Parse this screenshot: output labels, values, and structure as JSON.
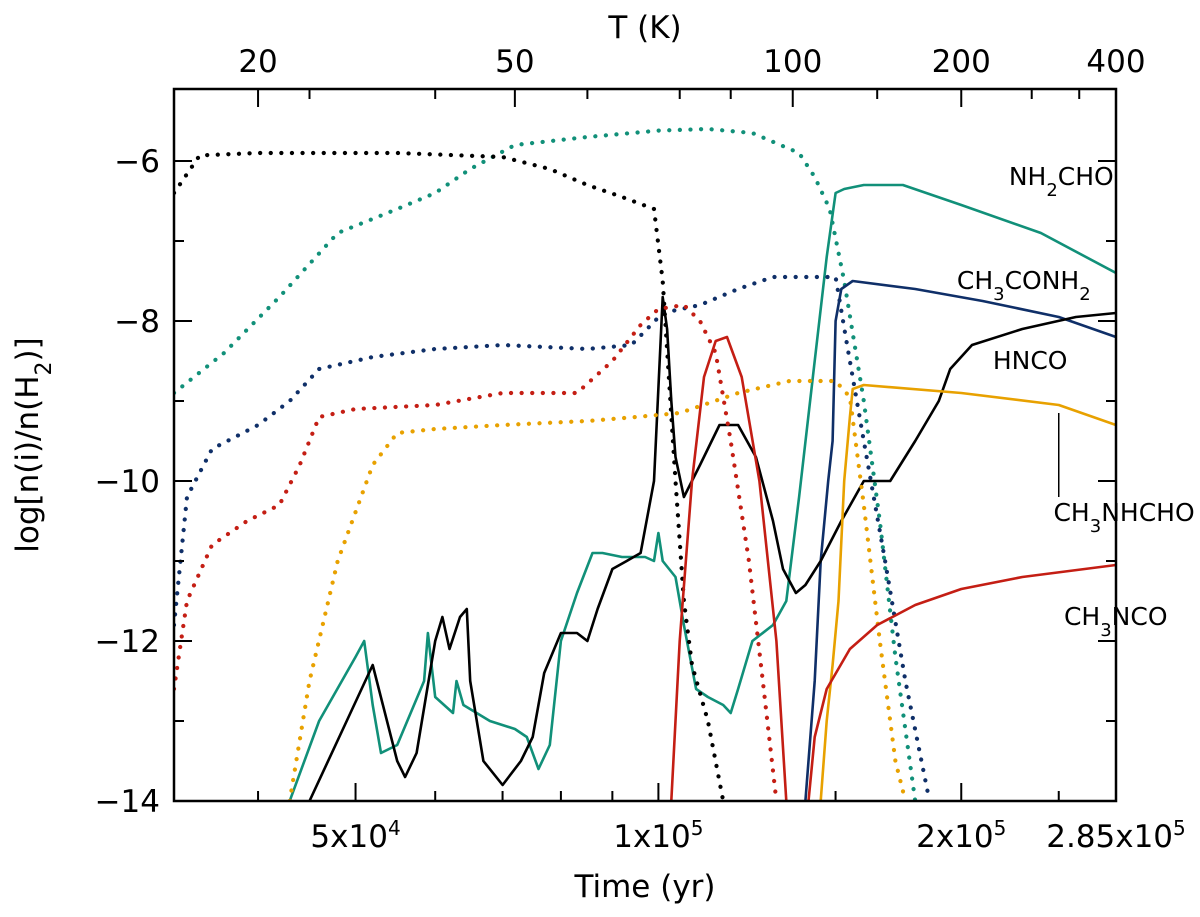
{
  "chart_data": {
    "type": "line",
    "xlabel": "Time (yr)",
    "ylabel": "log[n(i)/n(H2)]",
    "ylabel_parts": {
      "pre": "log[n(i)/n(H",
      "sub": "2",
      "post": ")]"
    },
    "top_xlabel": "T (K)",
    "xlim": [
      33000,
      285000
    ],
    "ylim": [
      -14,
      -5.1
    ],
    "x_ticks": [
      {
        "v": 50000,
        "label": "5x10",
        "sup": "4"
      },
      {
        "v": 100000,
        "label": "1x10",
        "sup": "5"
      },
      {
        "v": 200000,
        "label": "2x10",
        "sup": "5"
      },
      {
        "v": 285000,
        "label": "2.85x10",
        "sup": "5"
      }
    ],
    "y_ticks": [
      {
        "v": -6,
        "label": "−6"
      },
      {
        "v": -8,
        "label": "−8"
      },
      {
        "v": -10,
        "label": "−10"
      },
      {
        "v": -12,
        "label": "−12"
      },
      {
        "v": -14,
        "label": "−14"
      }
    ],
    "top_ticks": [
      {
        "t": 40000,
        "label": "20"
      },
      {
        "t": 72000,
        "label": "50"
      },
      {
        "t": 136000,
        "label": "100"
      },
      {
        "t": 200000,
        "label": "200"
      },
      {
        "t": 285000,
        "label": "400"
      }
    ],
    "labels": [
      {
        "parts": [
          [
            "NH",
            ""
          ],
          [
            "2",
            "sub"
          ],
          [
            "CHO",
            ""
          ]
        ],
        "x": 223000,
        "y": -6.3
      },
      {
        "parts": [
          [
            "CH",
            ""
          ],
          [
            "3",
            "sub"
          ],
          [
            "CONH",
            ""
          ],
          [
            "2",
            "sub"
          ]
        ],
        "x": 198000,
        "y": -7.6
      },
      {
        "parts": [
          [
            "HNCO",
            ""
          ]
        ],
        "x": 215000,
        "y": -8.6
      },
      {
        "parts": [
          [
            "CH",
            ""
          ],
          [
            "3",
            "sub"
          ],
          [
            "NHCHO",
            ""
          ]
        ],
        "x": 247000,
        "y": -10.5
      },
      {
        "parts": [
          [
            "CH",
            ""
          ],
          [
            "3",
            "sub"
          ],
          [
            "NCO",
            ""
          ]
        ],
        "x": 253000,
        "y": -11.8
      }
    ],
    "pointer": {
      "x": 250000,
      "y1": -9.15,
      "y2": -10.2
    },
    "series": [
      {
        "name": "NH2CHO (solid)",
        "color": "#119079",
        "dash": "solid",
        "points": [
          [
            43000,
            -14
          ],
          [
            46000,
            -13
          ],
          [
            50000,
            -12.2
          ],
          [
            51000,
            -12.0
          ],
          [
            52000,
            -12.8
          ],
          [
            53000,
            -13.4
          ],
          [
            55000,
            -13.3
          ],
          [
            58500,
            -12.5
          ],
          [
            59000,
            -11.9
          ],
          [
            60000,
            -12.7
          ],
          [
            62500,
            -12.9
          ],
          [
            63000,
            -12.5
          ],
          [
            64000,
            -12.8
          ],
          [
            68000,
            -13
          ],
          [
            72000,
            -13.1
          ],
          [
            74000,
            -13.2
          ],
          [
            76000,
            -13.6
          ],
          [
            78000,
            -13.3
          ],
          [
            80000,
            -12.0
          ],
          [
            83000,
            -11.4
          ],
          [
            86000,
            -10.9
          ],
          [
            88000,
            -10.9
          ],
          [
            92000,
            -10.95
          ],
          [
            97000,
            -10.95
          ],
          [
            99000,
            -11.0
          ],
          [
            100000,
            -10.65
          ],
          [
            101000,
            -11.0
          ],
          [
            104000,
            -11.2
          ],
          [
            106000,
            -11.8
          ],
          [
            109000,
            -12.6
          ],
          [
            112000,
            -12.7
          ],
          [
            116000,
            -12.8
          ],
          [
            118000,
            -12.9
          ],
          [
            120000,
            -12.6
          ],
          [
            124000,
            -12.0
          ],
          [
            130000,
            -11.8
          ],
          [
            134000,
            -11.5
          ],
          [
            138000,
            -10.2
          ],
          [
            143000,
            -8.5
          ],
          [
            147000,
            -7.2
          ],
          [
            150000,
            -6.4
          ],
          [
            153000,
            -6.35
          ],
          [
            160000,
            -6.3
          ],
          [
            175000,
            -6.3
          ],
          [
            200000,
            -6.55
          ],
          [
            240000,
            -6.9
          ],
          [
            285000,
            -7.4
          ]
        ]
      },
      {
        "name": "NH2CHO (dotted)",
        "color": "#119079",
        "dash": "dotted",
        "points": [
          [
            33000,
            -8.9
          ],
          [
            37000,
            -8.4
          ],
          [
            42000,
            -7.7
          ],
          [
            48000,
            -6.9
          ],
          [
            55000,
            -6.6
          ],
          [
            60000,
            -6.4
          ],
          [
            65000,
            -6.1
          ],
          [
            72000,
            -5.8
          ],
          [
            85000,
            -5.7
          ],
          [
            100000,
            -5.62
          ],
          [
            112000,
            -5.6
          ],
          [
            124000,
            -5.65
          ],
          [
            138000,
            -5.9
          ],
          [
            143000,
            -6.2
          ],
          [
            148000,
            -6.6
          ],
          [
            153000,
            -7.5
          ],
          [
            160000,
            -9.0
          ],
          [
            166000,
            -10.5
          ],
          [
            172000,
            -12.2
          ],
          [
            180000,
            -14
          ]
        ]
      },
      {
        "name": "CH3CONH2 (solid)",
        "color": "#0f2f68",
        "dash": "solid",
        "points": [
          [
            140000,
            -14
          ],
          [
            143000,
            -12.5
          ],
          [
            145000,
            -11.0
          ],
          [
            147500,
            -10.0
          ],
          [
            149000,
            -9.5
          ],
          [
            150000,
            -8.0
          ],
          [
            152000,
            -7.6
          ],
          [
            156000,
            -7.5
          ],
          [
            180000,
            -7.6
          ],
          [
            210000,
            -7.75
          ],
          [
            250000,
            -7.95
          ],
          [
            285000,
            -8.2
          ]
        ]
      },
      {
        "name": "CH3CONH2 (dotted)",
        "color": "#0f2f68",
        "dash": "dotted",
        "points": [
          [
            33000,
            -11.8
          ],
          [
            34000,
            -10.2
          ],
          [
            36000,
            -9.6
          ],
          [
            40000,
            -9.3
          ],
          [
            43000,
            -9.0
          ],
          [
            46000,
            -8.6
          ],
          [
            52000,
            -8.45
          ],
          [
            60000,
            -8.35
          ],
          [
            70000,
            -8.3
          ],
          [
            85000,
            -8.35
          ],
          [
            94000,
            -8.3
          ],
          [
            101000,
            -7.9
          ],
          [
            110000,
            -7.8
          ],
          [
            120000,
            -7.6
          ],
          [
            130000,
            -7.45
          ],
          [
            140000,
            -7.45
          ],
          [
            150000,
            -7.45
          ],
          [
            154000,
            -8.3
          ],
          [
            160000,
            -9.5
          ],
          [
            168000,
            -11.0
          ],
          [
            176000,
            -12.5
          ],
          [
            186000,
            -14
          ]
        ]
      },
      {
        "name": "HNCO (solid)",
        "color": "#000000",
        "dash": "solid",
        "points": [
          [
            45000,
            -14
          ],
          [
            49000,
            -13.0
          ],
          [
            52000,
            -12.3
          ],
          [
            55000,
            -13.5
          ],
          [
            56000,
            -13.7
          ],
          [
            57500,
            -13.4
          ],
          [
            60000,
            -12.0
          ],
          [
            61000,
            -11.7
          ],
          [
            62000,
            -12.1
          ],
          [
            63500,
            -11.7
          ],
          [
            64500,
            -11.6
          ],
          [
            65000,
            -12.5
          ],
          [
            67000,
            -13.5
          ],
          [
            70000,
            -13.8
          ],
          [
            73000,
            -13.5
          ],
          [
            75000,
            -13.2
          ],
          [
            77000,
            -12.4
          ],
          [
            80000,
            -11.9
          ],
          [
            83000,
            -11.9
          ],
          [
            85000,
            -12.0
          ],
          [
            87000,
            -11.6
          ],
          [
            90000,
            -11.1
          ],
          [
            93000,
            -11.0
          ],
          [
            96000,
            -10.9
          ],
          [
            99000,
            -10.0
          ],
          [
            101000,
            -7.7
          ],
          [
            102000,
            -8.1
          ],
          [
            103000,
            -9.0
          ],
          [
            104000,
            -9.7
          ],
          [
            106000,
            -10.2
          ],
          [
            110000,
            -9.8
          ],
          [
            115000,
            -9.3
          ],
          [
            120000,
            -9.3
          ],
          [
            125000,
            -9.7
          ],
          [
            130000,
            -10.5
          ],
          [
            133000,
            -11.1
          ],
          [
            137000,
            -11.4
          ],
          [
            140000,
            -11.3
          ],
          [
            145000,
            -11.0
          ],
          [
            152000,
            -10.5
          ],
          [
            160000,
            -10.0
          ],
          [
            170000,
            -10.0
          ],
          [
            180000,
            -9.5
          ],
          [
            190000,
            -9.0
          ],
          [
            195000,
            -8.6
          ],
          [
            205000,
            -8.3
          ],
          [
            230000,
            -8.1
          ],
          [
            260000,
            -7.95
          ],
          [
            285000,
            -7.9
          ]
        ]
      },
      {
        "name": "HNCO (dotted)",
        "color": "#000000",
        "dash": "dotted",
        "points": [
          [
            33000,
            -6.4
          ],
          [
            35000,
            -5.93
          ],
          [
            40000,
            -5.9
          ],
          [
            55000,
            -5.9
          ],
          [
            70000,
            -5.95
          ],
          [
            78000,
            -6.1
          ],
          [
            85000,
            -6.3
          ],
          [
            92000,
            -6.45
          ],
          [
            99000,
            -6.6
          ],
          [
            101000,
            -7.5
          ],
          [
            104000,
            -10.0
          ],
          [
            106000,
            -11.5
          ],
          [
            108000,
            -12.3
          ],
          [
            112000,
            -13.0
          ],
          [
            116000,
            -14
          ]
        ]
      },
      {
        "name": "CH3NHCHO (solid)",
        "color": "#e8a100",
        "dash": "solid",
        "points": [
          [
            145000,
            -14
          ],
          [
            147000,
            -13.0
          ],
          [
            149000,
            -12.3
          ],
          [
            151000,
            -11.5
          ],
          [
            153000,
            -10.0
          ],
          [
            155000,
            -9.2
          ],
          [
            156000,
            -8.85
          ],
          [
            160000,
            -8.8
          ],
          [
            200000,
            -8.9
          ],
          [
            250000,
            -9.05
          ],
          [
            285000,
            -9.3
          ]
        ]
      },
      {
        "name": "CH3NHCHO (dotted)",
        "color": "#e8a100",
        "dash": "dotted",
        "points": [
          [
            43000,
            -14
          ],
          [
            45000,
            -12.5
          ],
          [
            48000,
            -11.0
          ],
          [
            52000,
            -9.8
          ],
          [
            55000,
            -9.4
          ],
          [
            60000,
            -9.35
          ],
          [
            70000,
            -9.3
          ],
          [
            85000,
            -9.25
          ],
          [
            95000,
            -9.2
          ],
          [
            105000,
            -9.15
          ],
          [
            120000,
            -8.9
          ],
          [
            135000,
            -8.75
          ],
          [
            150000,
            -8.75
          ],
          [
            155000,
            -8.95
          ],
          [
            160000,
            -10.3
          ],
          [
            166000,
            -12.0
          ],
          [
            172000,
            -13.5
          ],
          [
            176000,
            -14
          ]
        ]
      },
      {
        "name": "CH3NCO (solid)",
        "color": "#c41e14",
        "dash": "solid",
        "points": [
          [
            141000,
            -14
          ],
          [
            143000,
            -13.2
          ],
          [
            147000,
            -12.6
          ],
          [
            155000,
            -12.1
          ],
          [
            165000,
            -11.8
          ],
          [
            180000,
            -11.55
          ],
          [
            200000,
            -11.35
          ],
          [
            230000,
            -11.2
          ],
          [
            285000,
            -11.05
          ]
        ]
      },
      {
        "name": "CH3NCO (dotted)",
        "color": "#c41e14",
        "dash": "dotted",
        "points": [
          [
            33000,
            -12.6
          ],
          [
            34000,
            -11.5
          ],
          [
            36000,
            -10.8
          ],
          [
            39000,
            -10.5
          ],
          [
            42000,
            -10.3
          ],
          [
            44000,
            -9.8
          ],
          [
            46000,
            -9.2
          ],
          [
            50000,
            -9.1
          ],
          [
            60000,
            -9.05
          ],
          [
            70000,
            -8.9
          ],
          [
            83000,
            -8.9
          ],
          [
            90000,
            -8.5
          ],
          [
            96000,
            -8.05
          ],
          [
            100000,
            -7.85
          ],
          [
            106000,
            -7.8
          ],
          [
            110000,
            -8.0
          ],
          [
            114000,
            -8.4
          ],
          [
            118000,
            -9.5
          ],
          [
            123000,
            -11.0
          ],
          [
            127000,
            -12.5
          ],
          [
            131000,
            -14
          ]
        ]
      },
      {
        "name": "CH3NCO gas peak",
        "color": "#c41e14",
        "dash": "solid",
        "points": [
          [
            103000,
            -14
          ],
          [
            105000,
            -12.0
          ],
          [
            108000,
            -10.0
          ],
          [
            111000,
            -8.7
          ],
          [
            114000,
            -8.25
          ],
          [
            117000,
            -8.2
          ],
          [
            121000,
            -8.7
          ],
          [
            126000,
            -10.0
          ],
          [
            131000,
            -12.0
          ],
          [
            134000,
            -14
          ]
        ]
      }
    ]
  }
}
